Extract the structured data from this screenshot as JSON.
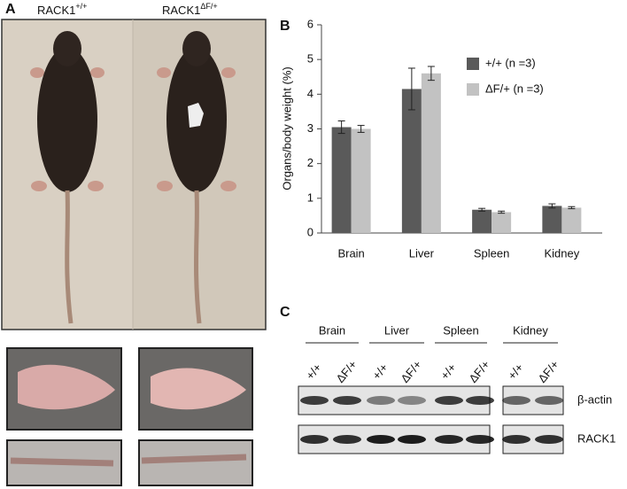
{
  "panel_a": {
    "label": "A",
    "genotypes": [
      {
        "base": "RACK1",
        "sup": "+/+"
      },
      {
        "base": "RACK1",
        "sup": "ΔF/+"
      }
    ]
  },
  "chart_data": {
    "type": "bar",
    "label": "B",
    "y_label": "Organs/body weight (%)",
    "categories": [
      "Brain",
      "Liver",
      "Spleen",
      "Kidney"
    ],
    "series": [
      {
        "name": "+/+ (n =3)",
        "color": "#5a5a5a",
        "values": [
          3.05,
          4.15,
          0.67,
          0.78
        ],
        "errors": [
          0.18,
          0.6,
          0.04,
          0.06
        ]
      },
      {
        "name": "ΔF/+ (n =3)",
        "color": "#c2c2c2",
        "values": [
          3.0,
          4.6,
          0.6,
          0.73
        ],
        "errors": [
          0.1,
          0.2,
          0.03,
          0.03
        ]
      }
    ],
    "ylim": [
      0,
      6
    ],
    "yticks": [
      0,
      1,
      2,
      3,
      4,
      5,
      6
    ],
    "grid": false
  },
  "panel_c": {
    "label": "C",
    "groups": [
      {
        "name": "Brain",
        "lanes": [
          "+/+",
          "ΔF/+"
        ]
      },
      {
        "name": "Liver",
        "lanes": [
          "+/+",
          "ΔF/+"
        ]
      },
      {
        "name": "Spleen",
        "lanes": [
          "+/+",
          "ΔF/+"
        ]
      },
      {
        "name": "Kidney",
        "lanes": [
          "+/+",
          "ΔF/+"
        ]
      }
    ],
    "bands": [
      "β-actin",
      "RACK1"
    ]
  }
}
